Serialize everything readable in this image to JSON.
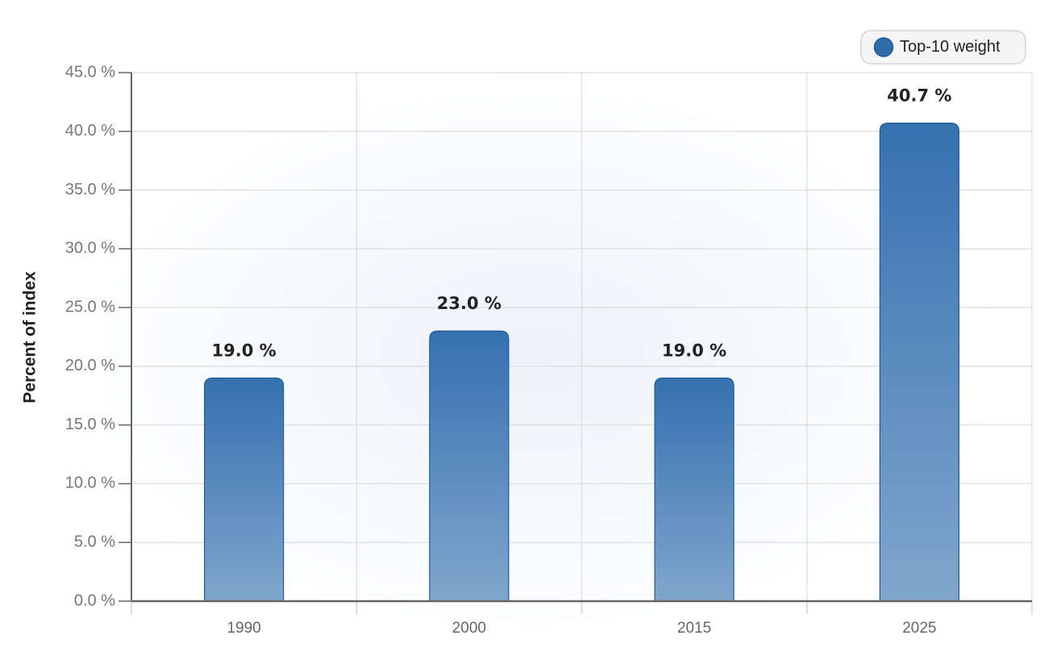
{
  "chart_data": {
    "type": "bar",
    "y_label": "Percent of index",
    "categories": [
      "1990",
      "2000",
      "2015",
      "2025"
    ],
    "series": [
      {
        "name": "Top-10 weight",
        "color": "#2f6aab",
        "values": [
          19.0,
          23.0,
          19.0,
          40.7
        ],
        "value_labels": [
          "19.0 %",
          "23.0 %",
          "19.0 %",
          "40.7 %"
        ]
      }
    ],
    "ylim": [
      0,
      45
    ],
    "yticks": [
      {
        "value": 0,
        "label": "0.0 %"
      },
      {
        "value": 5,
        "label": "5.0 %"
      },
      {
        "value": 10,
        "label": "10.0 %"
      },
      {
        "value": 15,
        "label": "15.0 %"
      },
      {
        "value": 20,
        "label": "20.0 %"
      },
      {
        "value": 25,
        "label": "25.0 %"
      },
      {
        "value": 30,
        "label": "30.0 %"
      },
      {
        "value": 35,
        "label": "35.0 %"
      },
      {
        "value": 40,
        "label": "40.0 %"
      },
      {
        "value": 45,
        "label": "45.0 %"
      }
    ],
    "grid": true,
    "legend": "top-right"
  }
}
